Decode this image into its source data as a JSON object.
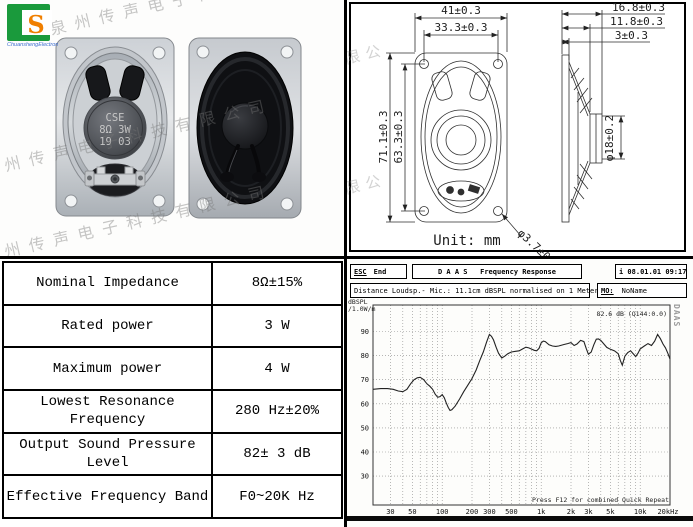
{
  "company": {
    "watermark": "泉州传声电子科技有限公司",
    "watermark_partial": "限公",
    "logo_letter": "S",
    "logo_caption": "ChuanshengElectron"
  },
  "photos": {
    "speaker_label_line1": "CSE",
    "speaker_label_line2": "8Ω 3W",
    "speaker_label_line3": "19 03"
  },
  "drawing": {
    "dim_width_outer": "41±0.3",
    "dim_width_holes": "33.3±0.3",
    "dim_height_outer": "71.1±0.3",
    "dim_height_holes": "63.3±0.3",
    "dim_depth_total": "16.8±0.3",
    "dim_depth_frame": "11.8±0.3",
    "dim_flange": "3±0.3",
    "dim_magnet": "φ18±0.2",
    "dim_hole": "φ3.7±0.1",
    "unit_label": "Unit: mm"
  },
  "spec_table": {
    "rows": [
      {
        "name": "Nominal Impedance",
        "value": "8Ω±15%"
      },
      {
        "name": "Rated power",
        "value": "3 W"
      },
      {
        "name": "Maximum power",
        "value": "4 W"
      },
      {
        "name": "Lowest Resonance Frequency",
        "value": "280 Hz±20%"
      },
      {
        "name": "Output Sound Pressure Level",
        "value": "82± 3 dB"
      },
      {
        "name": "Effective Frequency Band",
        "value": "F0~20K Hz"
      }
    ]
  },
  "chart": {
    "esc_key": "ESC",
    "esc_label": "End",
    "title": "D A A S   Frequency Response",
    "timestamp": "i 08.01.01 09:17",
    "measurement_info": "Distance Loudsp.- Mic.: 11.1cm dBSPL normalised on 1 Meter",
    "mo_label": "MO:",
    "mo_value": "NoName",
    "ylabel_line1": "dBSPL",
    "ylabel_line2": "/1.0W/m",
    "annotation": "82.6 dB (Q144:0.0)",
    "footer_hint": "Press F12 for combined Quick Repeat",
    "brand_vertical": "DAAS"
  },
  "chart_data": {
    "type": "line",
    "title": "D A A S Frequency Response",
    "x_scale": "log",
    "xlabel": "",
    "ylabel": "dBSPL /1.0W/m",
    "xlim": [
      20,
      20000
    ],
    "ylim": [
      18,
      101
    ],
    "grid": true,
    "y_ticks": [
      30,
      40,
      50,
      60,
      70,
      80,
      90
    ],
    "x_ticks": [
      [
        30,
        "30"
      ],
      [
        50,
        "50"
      ],
      [
        100,
        "100"
      ],
      [
        200,
        "200"
      ],
      [
        300,
        "300"
      ],
      [
        500,
        "500"
      ],
      [
        1000,
        "1k"
      ],
      [
        2000,
        "2k"
      ],
      [
        3000,
        "3k"
      ],
      [
        5000,
        "5k"
      ],
      [
        10000,
        "10k"
      ],
      [
        20000,
        "20kHz"
      ]
    ],
    "points": [
      [
        20,
        66
      ],
      [
        24,
        66.3
      ],
      [
        28,
        66.3
      ],
      [
        32,
        66
      ],
      [
        36,
        65.3
      ],
      [
        40,
        65
      ],
      [
        44,
        66
      ],
      [
        48,
        68.3
      ],
      [
        52,
        70
      ],
      [
        56,
        70.8
      ],
      [
        60,
        71
      ],
      [
        65,
        70
      ],
      [
        70,
        68.3
      ],
      [
        75,
        67.3
      ],
      [
        80,
        66
      ],
      [
        85,
        64
      ],
      [
        90,
        62.7
      ],
      [
        95,
        63
      ],
      [
        100,
        63.8
      ],
      [
        105,
        62.5
      ],
      [
        110,
        60.3
      ],
      [
        115,
        58.5
      ],
      [
        120,
        57.2
      ],
      [
        125,
        57.5
      ],
      [
        135,
        59
      ],
      [
        150,
        62
      ],
      [
        165,
        65
      ],
      [
        180,
        67.5
      ],
      [
        200,
        70.5
      ],
      [
        220,
        74
      ],
      [
        240,
        78
      ],
      [
        260,
        81.5
      ],
      [
        280,
        85.5
      ],
      [
        300,
        88.8
      ],
      [
        315,
        88
      ],
      [
        330,
        86.5
      ],
      [
        350,
        83.5
      ],
      [
        370,
        81
      ],
      [
        400,
        79
      ],
      [
        430,
        79.8
      ],
      [
        460,
        80.8
      ],
      [
        500,
        81.5
      ],
      [
        550,
        81.8
      ],
      [
        600,
        82
      ],
      [
        650,
        82.8
      ],
      [
        700,
        83.5
      ],
      [
        750,
        83.2
      ],
      [
        800,
        82.7
      ],
      [
        850,
        82.2
      ],
      [
        900,
        82
      ],
      [
        950,
        83
      ],
      [
        1000,
        85.3
      ],
      [
        1050,
        86
      ],
      [
        1100,
        85.8
      ],
      [
        1200,
        84.5
      ],
      [
        1300,
        84
      ],
      [
        1400,
        83.8
      ],
      [
        1500,
        84
      ],
      [
        1700,
        84.6
      ],
      [
        1850,
        85
      ],
      [
        2000,
        85.4
      ],
      [
        2150,
        84.2
      ],
      [
        2300,
        84.8
      ],
      [
        2500,
        86.3
      ],
      [
        2700,
        85.8
      ],
      [
        2850,
        83
      ],
      [
        3000,
        80.6
      ],
      [
        3200,
        81.5
      ],
      [
        3400,
        84.5
      ],
      [
        3600,
        86.8
      ],
      [
        3800,
        86.9
      ],
      [
        4000,
        86.3
      ],
      [
        4300,
        84.8
      ],
      [
        4600,
        83.4
      ],
      [
        5000,
        82.6
      ],
      [
        5500,
        82
      ],
      [
        6000,
        80.8
      ],
      [
        6300,
        78
      ],
      [
        6600,
        76
      ],
      [
        7000,
        79.8
      ],
      [
        7500,
        81.3
      ],
      [
        8000,
        82
      ],
      [
        8500,
        80.8
      ],
      [
        9000,
        79.6
      ],
      [
        9500,
        81
      ],
      [
        10000,
        82.8
      ],
      [
        11000,
        84
      ],
      [
        12000,
        85
      ],
      [
        13000,
        84.2
      ],
      [
        14000,
        86
      ],
      [
        15000,
        88.8
      ],
      [
        16000,
        87
      ],
      [
        17000,
        84.8
      ],
      [
        18000,
        83.2
      ],
      [
        19000,
        81
      ],
      [
        20000,
        78.6
      ]
    ]
  }
}
